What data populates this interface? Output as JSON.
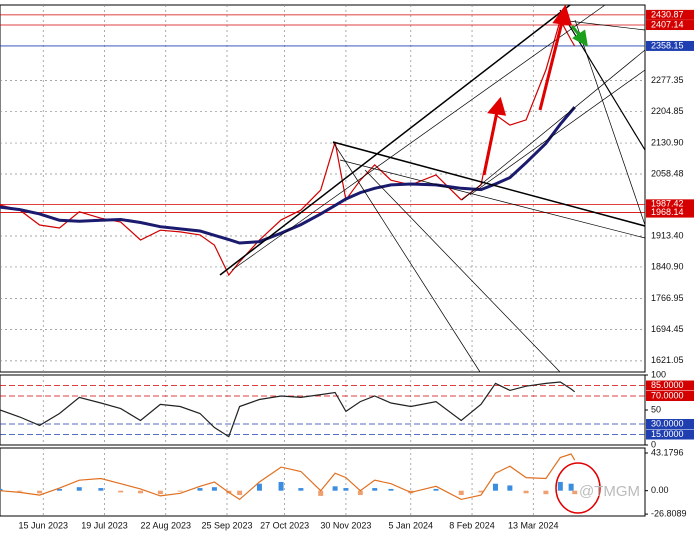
{
  "watermark": "@TMGM",
  "chart_data": [
    {
      "type": "line",
      "x": [
        "2023-05-22",
        "2023-06-02",
        "2023-06-13",
        "2023-06-24",
        "2023-07-05",
        "2023-07-17",
        "2023-07-28",
        "2023-08-08",
        "2023-08-19",
        "2023-08-30",
        "2023-09-10",
        "2023-09-18",
        "2023-09-26",
        "2023-10-02",
        "2023-10-13",
        "2023-10-25",
        "2023-11-05",
        "2023-11-16",
        "2023-11-24",
        "2023-11-30",
        "2023-12-08",
        "2023-12-16",
        "2023-12-25",
        "2024-01-05",
        "2024-01-19",
        "2024-02-02",
        "2024-02-13",
        "2024-02-21",
        "2024-02-29",
        "2024-03-09",
        "2024-03-20",
        "2024-03-28",
        "2024-04-03",
        "2024-04-05"
      ],
      "xlim": [
        "2023-05-22",
        "2024-05-14"
      ],
      "xticks": [
        {
          "value": "2023-06-15",
          "label": "15 Jun 2023"
        },
        {
          "value": "2023-07-19",
          "label": "19 Jul 2023"
        },
        {
          "value": "2023-08-22",
          "label": "22 Aug 2023"
        },
        {
          "value": "2023-09-25",
          "label": "25 Sep 2023"
        },
        {
          "value": "2023-10-27",
          "label": "27 Oct 2023"
        },
        {
          "value": "2023-11-30",
          "label": "30 Nov 2023"
        },
        {
          "value": "2024-01-05",
          "label": "5 Jan 2024"
        },
        {
          "value": "2024-02-08",
          "label": "8 Feb 2024"
        },
        {
          "value": "2024-03-13",
          "label": "13 Mar 2024"
        }
      ],
      "ylim": [
        1595,
        2454
      ],
      "yticks": [
        1621.05,
        1694.45,
        1766.95,
        {
          "value": 1840.9,
          "label": "1840.90"
        },
        {
          "value": 1913.4,
          "label": "1913.40"
        },
        2058.48,
        {
          "value": 2130.9,
          "label": "2130.90"
        },
        2204.85,
        2277.35
      ],
      "grid": true,
      "levels": [
        {
          "value": 2430.87,
          "color": "#d40000"
        },
        {
          "value": 2407.14,
          "color": "#d40000"
        },
        {
          "value": 2358.15,
          "color": "#1f3fb0"
        },
        {
          "value": 1987.42,
          "color": "#d40000"
        },
        {
          "value": 1968.14,
          "color": "#d40000"
        }
      ],
      "series": [
        {
          "color": "#d00000",
          "values": [
            1986,
            1974,
            1939,
            1932,
            1970,
            1955,
            1946,
            1904,
            1927,
            1923,
            1916,
            1892,
            1822,
            1853,
            1904,
            1951,
            1974,
            2021,
            2133,
            1998,
            2044,
            2080,
            2044,
            2033,
            2056,
            1998,
            2033,
            2197,
            2173,
            2185,
            2302,
            2419,
            2372,
            2358
          ]
        },
        {
          "color": "#1a1a6e",
          "values": [
            1981,
            1975,
            1965,
            1950,
            1948,
            1950,
            1952,
            1945,
            1935,
            1930,
            1925,
            1915,
            1905,
            1897,
            1900,
            1920,
            1940,
            1965,
            1985,
            2000,
            2015,
            2025,
            2033,
            2035,
            2033,
            2025,
            2022,
            2035,
            2050,
            2085,
            2130,
            2175,
            2205,
            2215
          ]
        }
      ]
    },
    {
      "type": "line",
      "ylim": [
        0,
        100
      ],
      "yticks": [
        0,
        50,
        100
      ],
      "levels": [
        {
          "value": 85,
          "label": "85.0000",
          "color": "#d40000"
        },
        {
          "value": 70,
          "label": "70.0000",
          "color": "#d40000"
        },
        {
          "value": 30,
          "label": "30.0000",
          "color": "#1f3fb0"
        },
        {
          "value": 15,
          "label": "15.0000",
          "color": "#1f3fb0"
        }
      ],
      "series": [
        {
          "color": "#222222",
          "values": [
            50,
            40,
            28,
            45,
            68,
            60,
            52,
            35,
            58,
            55,
            45,
            25,
            12,
            55,
            65,
            70,
            68,
            72,
            75,
            48,
            62,
            70,
            60,
            55,
            62,
            35,
            58,
            88,
            78,
            84,
            88,
            90,
            80,
            76
          ]
        }
      ]
    },
    {
      "type": "combo",
      "ylim": [
        -29,
        48.9
      ],
      "yticks": [
        -26.8089,
        {
          "value": 0,
          "label": "0.00"
        },
        43.1796
      ],
      "series": [
        {
          "type": "bar",
          "color": "#3b8de0",
          "negative_color": "#f0a070",
          "values": [
            2,
            -1,
            -3,
            2,
            4,
            3,
            -2,
            -3,
            -4,
            -1,
            3,
            4,
            -3,
            -5,
            8,
            10,
            3,
            -6,
            5,
            3,
            -5,
            3,
            2,
            -3,
            2,
            -5,
            -2,
            8,
            6,
            -3,
            -4,
            10,
            8,
            -4
          ]
        },
        {
          "type": "line",
          "color": "#e07020",
          "values": [
            0,
            -2,
            -5,
            3,
            12,
            14,
            8,
            2,
            -6,
            -3,
            5,
            10,
            -2,
            -10,
            10,
            27,
            22,
            0,
            20,
            15,
            0,
            12,
            8,
            -2,
            5,
            -10,
            -5,
            20,
            28,
            15,
            14,
            38,
            42,
            35
          ]
        }
      ]
    }
  ]
}
